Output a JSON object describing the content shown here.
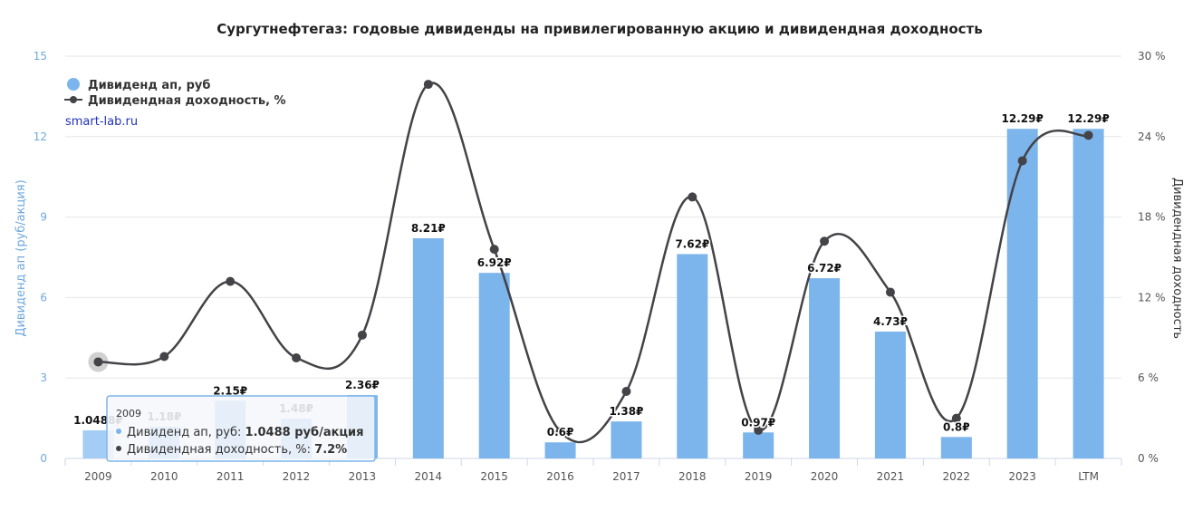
{
  "chart_data": {
    "type": "bar",
    "title": "Сургутнефтегаз: годовые дивиденды на привилегированную акцию и дивидендная доходность",
    "categories": [
      "2009",
      "2010",
      "2011",
      "2012",
      "2013",
      "2014",
      "2015",
      "2016",
      "2017",
      "2018",
      "2019",
      "2020",
      "2021",
      "2022",
      "2023",
      "LTM"
    ],
    "series": [
      {
        "name": "Дивиденд ап, руб",
        "type": "bar",
        "axis": "left",
        "color": "#7cb5ec",
        "values": [
          1.0488,
          1.18,
          2.15,
          1.48,
          2.36,
          8.21,
          6.92,
          0.6,
          1.38,
          7.62,
          0.97,
          6.72,
          4.73,
          0.8,
          12.29,
          12.29
        ],
        "labels": [
          "1.0488₽",
          "1.18₽",
          "2.15₽",
          "1.48₽",
          "2.36₽",
          "8.21₽",
          "6.92₽",
          "0.6₽",
          "1.38₽",
          "7.62₽",
          "0.97₽",
          "6.72₽",
          "4.73₽",
          "0.8₽",
          "12.29₽",
          "12.29₽"
        ]
      },
      {
        "name": "Дивидендная доходность, %",
        "type": "line",
        "axis": "right",
        "color": "#434348",
        "values": [
          7.2,
          7.6,
          13.2,
          7.5,
          9.2,
          27.9,
          15.6,
          2.0,
          5.0,
          19.5,
          2.1,
          16.2,
          12.4,
          3.0,
          22.2,
          24.1
        ]
      }
    ],
    "ylabel": "Дивиденд ап (руб/акция)",
    "ylabel_right": "Дивидендная доходность",
    "ylim": [
      0,
      15
    ],
    "ylim_right": [
      0,
      30
    ],
    "yticks": [
      "0",
      "3",
      "6",
      "9",
      "12",
      "15"
    ],
    "yticks_right": [
      "0 %",
      "6 %",
      "12 %",
      "18 %",
      "24 %",
      "30 %"
    ],
    "grid": true,
    "legend_position": "top-left",
    "credit": "smart-lab.ru",
    "tooltip": {
      "category": "2009",
      "line1_label": "Дивиденд ап, руб: ",
      "line1_value": "1.0488 руб/акция",
      "line2_label": "Дивидендная доходность, %: ",
      "line2_value": "7.2%"
    }
  }
}
